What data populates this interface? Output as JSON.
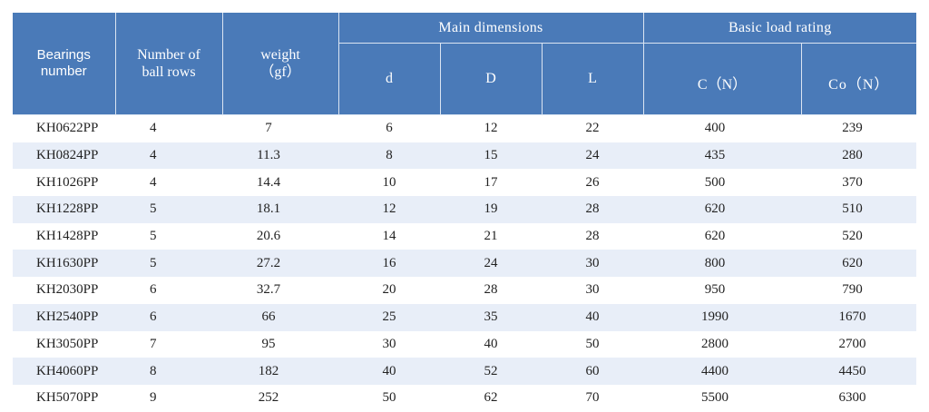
{
  "header": {
    "bearings_number": "Bearings number",
    "ball_rows": "Number of ball rows",
    "weight": "weight",
    "weight_unit": "（gf）",
    "main_dimensions": "Main dimensions",
    "d": "d",
    "D": "D",
    "L": "L",
    "basic_load_rating": "Basic load rating",
    "C": "C（N）",
    "Co": "Co（N）"
  },
  "colors": {
    "header_bg": "#4a7ab8",
    "stripe_bg": "#e8eef8",
    "header_text": "#ffffff"
  },
  "rows": [
    {
      "model": "KH0622PP",
      "rows": "4",
      "weight": "7",
      "d": "6",
      "D": "12",
      "L": "22",
      "C": "400",
      "Co": "239"
    },
    {
      "model": "KH0824PP",
      "rows": "4",
      "weight": "11.3",
      "d": "8",
      "D": "15",
      "L": "24",
      "C": "435",
      "Co": "280"
    },
    {
      "model": "KH1026PP",
      "rows": "4",
      "weight": "14.4",
      "d": "10",
      "D": "17",
      "L": "26",
      "C": "500",
      "Co": "370"
    },
    {
      "model": "KH1228PP",
      "rows": "5",
      "weight": "18.1",
      "d": "12",
      "D": "19",
      "L": "28",
      "C": "620",
      "Co": "510"
    },
    {
      "model": "KH1428PP",
      "rows": "5",
      "weight": "20.6",
      "d": "14",
      "D": "21",
      "L": "28",
      "C": "620",
      "Co": "520"
    },
    {
      "model": "KH1630PP",
      "rows": "5",
      "weight": "27.2",
      "d": "16",
      "D": "24",
      "L": "30",
      "C": "800",
      "Co": "620"
    },
    {
      "model": "KH2030PP",
      "rows": "6",
      "weight": "32.7",
      "d": "20",
      "D": "28",
      "L": "30",
      "C": "950",
      "Co": "790"
    },
    {
      "model": "KH2540PP",
      "rows": "6",
      "weight": "66",
      "d": "25",
      "D": "35",
      "L": "40",
      "C": "1990",
      "Co": "1670"
    },
    {
      "model": "KH3050PP",
      "rows": "7",
      "weight": "95",
      "d": "30",
      "D": "40",
      "L": "50",
      "C": "2800",
      "Co": "2700"
    },
    {
      "model": "KH4060PP",
      "rows": "8",
      "weight": "182",
      "d": "40",
      "D": "52",
      "L": "60",
      "C": "4400",
      "Co": "4450"
    },
    {
      "model": "KH5070PP",
      "rows": "9",
      "weight": "252",
      "d": "50",
      "D": "62",
      "L": "70",
      "C": "5500",
      "Co": "6300"
    }
  ]
}
